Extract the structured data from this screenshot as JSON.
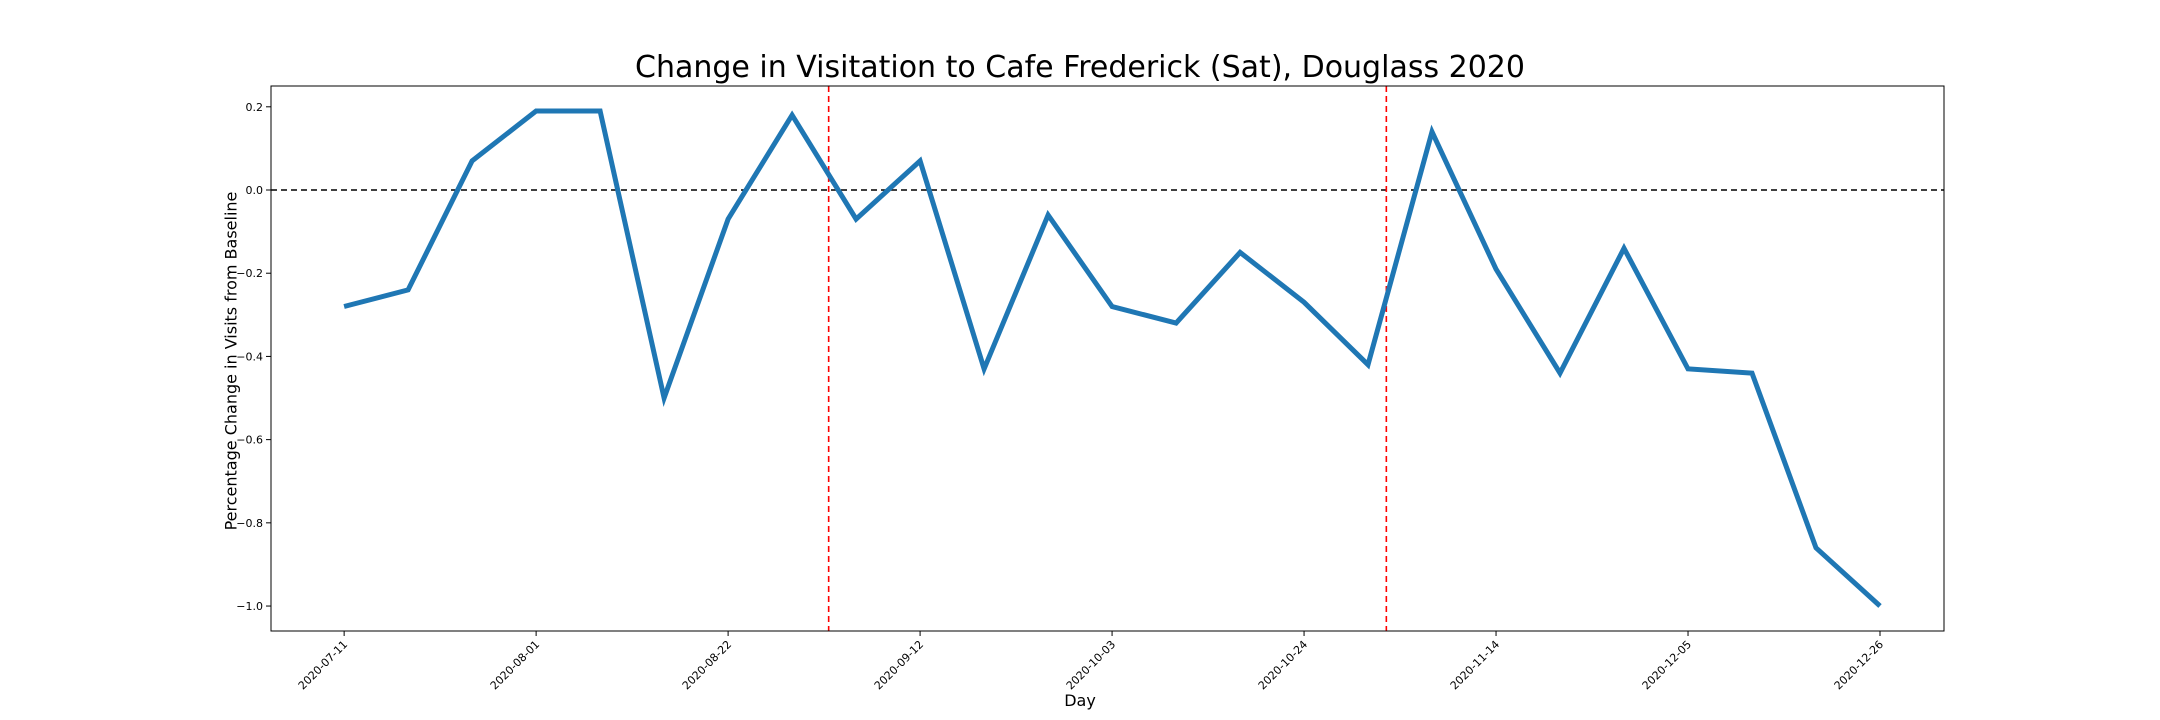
{
  "chart_data": {
    "type": "line",
    "title": "Change in Visitation to Cafe Frederick (Sat), Douglass 2020",
    "xlabel": "Day",
    "ylabel": "Percentage Change in Visits from Baseline",
    "x": [
      "2020-07-11",
      "2020-07-18",
      "2020-07-25",
      "2020-08-01",
      "2020-08-08",
      "2020-08-15",
      "2020-08-22",
      "2020-08-29",
      "2020-09-05",
      "2020-09-12",
      "2020-09-19",
      "2020-09-26",
      "2020-10-03",
      "2020-10-10",
      "2020-10-17",
      "2020-10-24",
      "2020-10-31",
      "2020-11-07",
      "2020-11-14",
      "2020-11-21",
      "2020-11-28",
      "2020-12-05",
      "2020-12-12",
      "2020-12-19",
      "2020-12-26"
    ],
    "series": [
      {
        "values": [
          -0.28,
          -0.24,
          0.07,
          0.19,
          0.19,
          -0.5,
          -0.07,
          0.18,
          -0.07,
          0.07,
          -0.43,
          -0.06,
          -0.28,
          -0.32,
          -0.15,
          -0.27,
          -0.42,
          0.14,
          -0.19,
          -0.44,
          -0.14,
          -0.43,
          -0.44,
          -0.86,
          -1.0
        ],
        "color": "#1f77b4"
      }
    ],
    "x_ticks": [
      "2020-07-11",
      "2020-08-01",
      "2020-08-22",
      "2020-09-12",
      "2020-10-03",
      "2020-10-24",
      "2020-11-14",
      "2020-12-05",
      "2020-12-26"
    ],
    "y_ticks": [
      -1.0,
      -0.8,
      -0.6,
      -0.4,
      -0.2,
      0.0,
      0.2
    ],
    "y_tick_labels": [
      "−1.0",
      "−0.8",
      "−0.6",
      "−0.4",
      "−0.2",
      "0.0",
      "0.2"
    ],
    "ylim": [
      -1.06,
      0.25
    ],
    "xlim": [
      "2020-07-03",
      "2021-01-02"
    ],
    "hlines": [
      {
        "y": 0.0,
        "color": "#000000",
        "style": "dashed"
      }
    ],
    "vlines": [
      {
        "x": "2020-09-02",
        "color": "#ff0000",
        "style": "dashed"
      },
      {
        "x": "2020-11-02",
        "color": "#ff0000",
        "style": "dashed"
      }
    ],
    "grid": false,
    "legend": false
  }
}
